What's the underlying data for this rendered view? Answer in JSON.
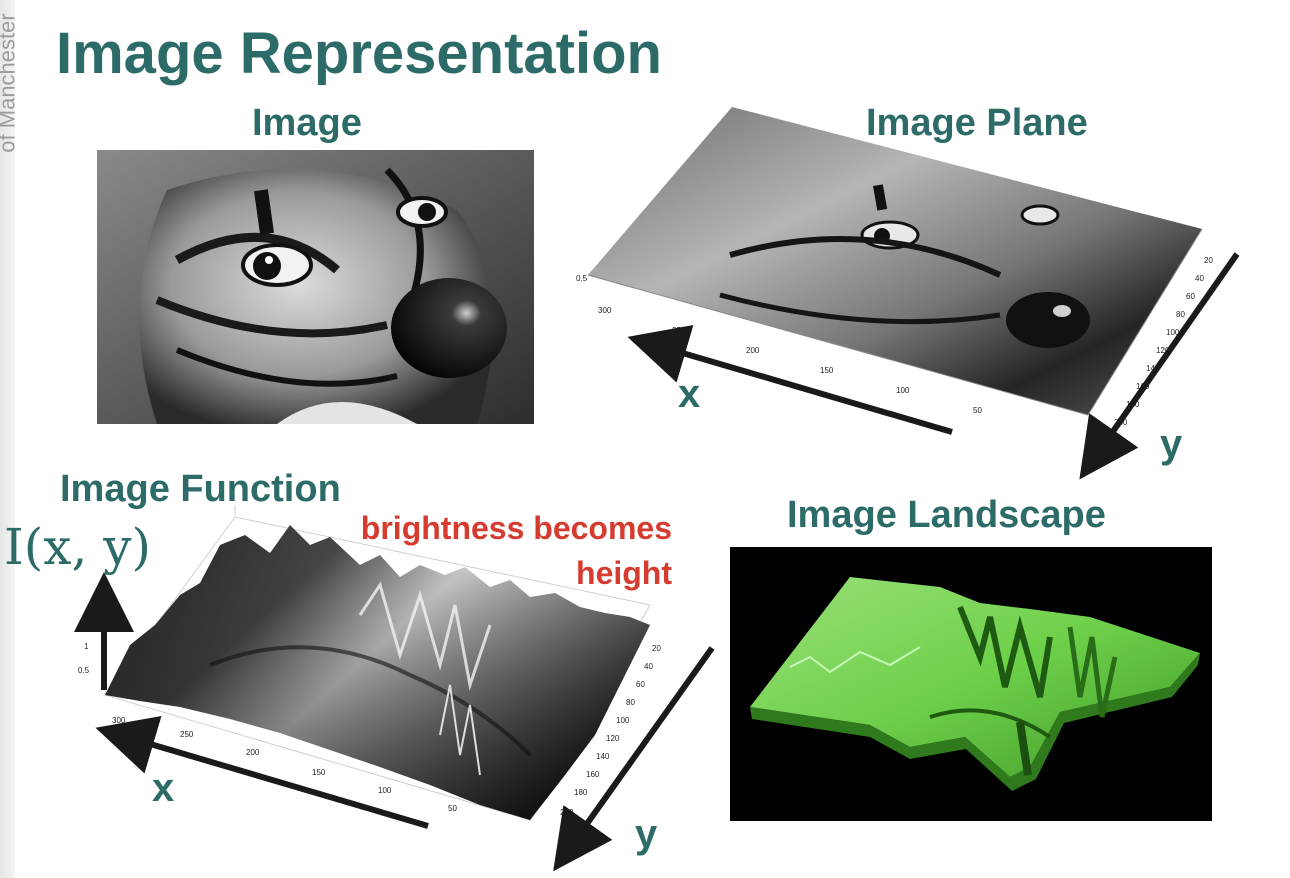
{
  "side_strip": {
    "text": "of Manchester"
  },
  "slide": {
    "title": "Image Representation"
  },
  "panels": {
    "image": {
      "label": "Image"
    },
    "image_plane": {
      "label": "Image Plane",
      "x_ticks": [
        "300",
        "250",
        "200",
        "150",
        "100",
        "50"
      ],
      "y_ticks": [
        "20",
        "40",
        "60",
        "80",
        "100",
        "120",
        "140",
        "160",
        "180",
        "200"
      ],
      "z_tick": "0.5"
    },
    "image_function": {
      "label": "Image Function",
      "formula": "I(x, y)",
      "x_ticks": [
        "300",
        "250",
        "200",
        "150",
        "100",
        "50"
      ],
      "y_ticks": [
        "20",
        "40",
        "60",
        "80",
        "100",
        "120",
        "140",
        "160",
        "180",
        "200"
      ],
      "z_ticks": [
        "1",
        "0.5"
      ]
    },
    "image_landscape": {
      "label": "Image Landscape"
    }
  },
  "annotations": {
    "brightness_line1": "brightness becomes",
    "brightness_line2": "height"
  },
  "axes": {
    "x": "x",
    "y": "y"
  },
  "colors": {
    "title": "#2c6b68",
    "accent_red": "#d63b30",
    "landscape_green": "#6ed04a",
    "arrow": "#1a1a1a"
  }
}
